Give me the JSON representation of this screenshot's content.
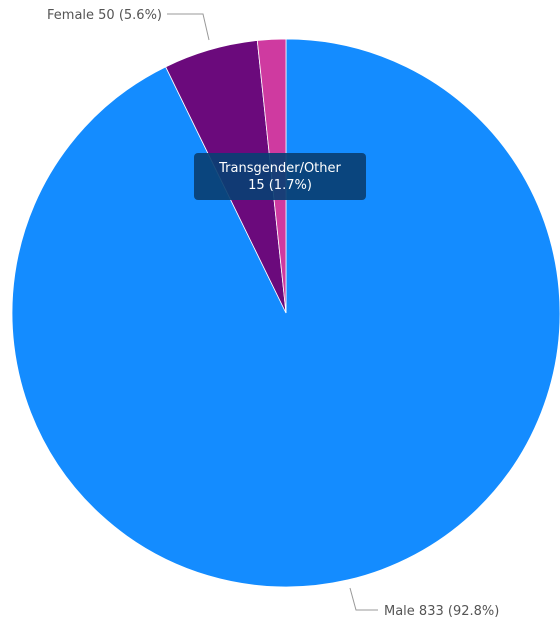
{
  "chart_data": {
    "type": "pie",
    "title": "",
    "start_angle": "top",
    "direction": "clockwise",
    "slices": [
      {
        "name": "Male",
        "value": 833,
        "percent": 92.8,
        "color": "#148cff",
        "label": "Male 833 (92.8%)"
      },
      {
        "name": "Female",
        "value": 50,
        "percent": 5.6,
        "color": "#6b0a7c",
        "label": "Female 50 (5.6%)"
      },
      {
        "name": "Transgender/Other",
        "value": 15,
        "percent": 1.7,
        "color": "#cf3aa0",
        "label": "15 (1.7%)"
      }
    ],
    "tooltip": {
      "title": "Transgender/Other",
      "value_text": "15 (1.7%)"
    }
  }
}
